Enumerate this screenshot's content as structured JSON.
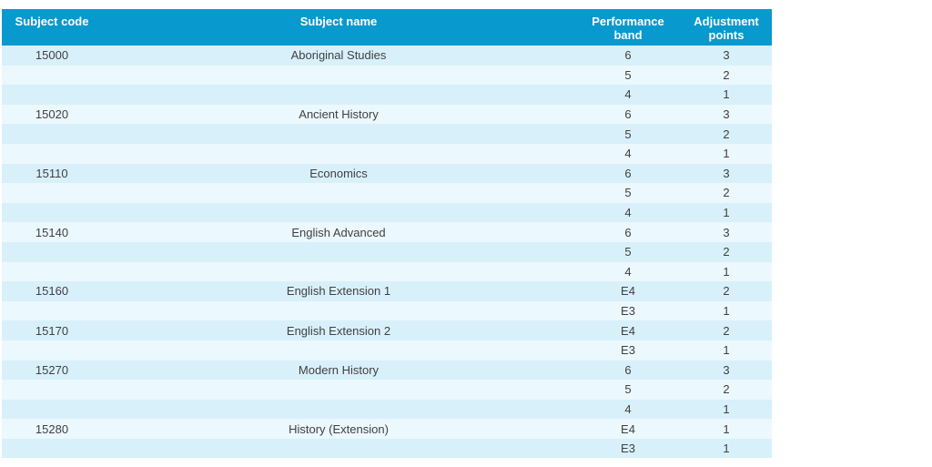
{
  "table": {
    "columns": [
      "Subject code",
      "Subject name",
      "Performance band",
      "Adjustment points"
    ],
    "rows": [
      [
        "15000",
        "Aboriginal Studies",
        "6",
        "3"
      ],
      [
        "",
        "",
        "5",
        "2"
      ],
      [
        "",
        "",
        "4",
        "1"
      ],
      [
        "15020",
        "Ancient History",
        "6",
        "3"
      ],
      [
        "",
        "",
        "5",
        "2"
      ],
      [
        "",
        "",
        "4",
        "1"
      ],
      [
        "15110",
        "Economics",
        "6",
        "3"
      ],
      [
        "",
        "",
        "5",
        "2"
      ],
      [
        "",
        "",
        "4",
        "1"
      ],
      [
        "15140",
        "English Advanced",
        "6",
        "3"
      ],
      [
        "",
        "",
        "5",
        "2"
      ],
      [
        "",
        "",
        "4",
        "1"
      ],
      [
        "15160",
        "English Extension 1",
        "E4",
        "2"
      ],
      [
        "",
        "",
        "E3",
        "1"
      ],
      [
        "15170",
        "English Extension 2",
        "E4",
        "2"
      ],
      [
        "",
        "",
        "E3",
        "1"
      ],
      [
        "15270",
        "Modern History",
        "6",
        "3"
      ],
      [
        "",
        "",
        "5",
        "2"
      ],
      [
        "",
        "",
        "4",
        "1"
      ],
      [
        "15280",
        "History (Extension)",
        "E4",
        "1"
      ],
      [
        "",
        "",
        "E3",
        "1"
      ]
    ]
  },
  "colors": {
    "header_bg": "#0899CE",
    "header_text": "#FFFFFF",
    "row_odd_bg": "#D8F0FA",
    "row_even_bg": "#EBF8FD",
    "body_text": "#414042",
    "page_bg": "#FFFFFF"
  }
}
